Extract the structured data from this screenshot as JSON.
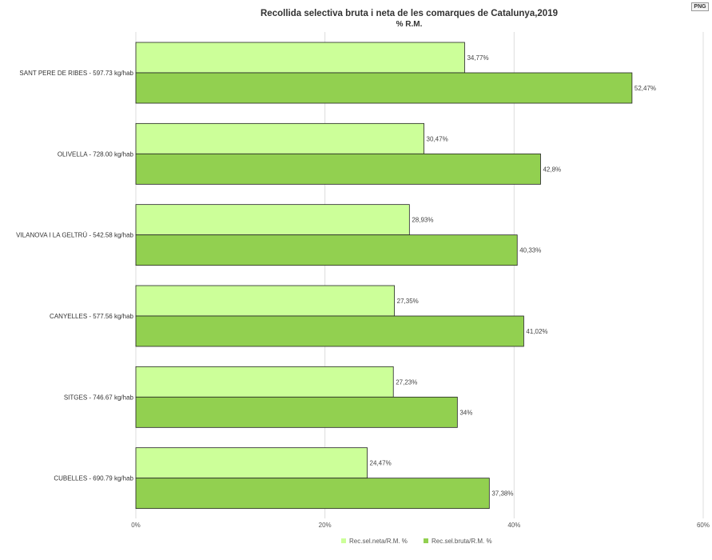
{
  "export_button": "PNG",
  "colors": {
    "neta": "#ccff99",
    "bruta": "#92d050",
    "stroke": "#222222",
    "grid": "#dddddd"
  },
  "chart_data": {
    "type": "bar",
    "orientation": "horizontal",
    "title": "Recollida selectiva bruta i neta de les comarques de Catalunya,2019",
    "subtitle": "% R.M.",
    "categories": [
      "SANT PERE DE RIBES - 597.73 kg/hab",
      "OLIVELLA - 728.00 kg/hab",
      "VILANOVA I LA GELTRÚ - 542.58 kg/hab",
      "CANYELLES - 577.56 kg/hab",
      "SITGES - 746.67 kg/hab",
      "CUBELLES - 690.79 kg/hab"
    ],
    "series": [
      {
        "name": "Rec.sel.neta/R.M. %",
        "values": [
          34.77,
          30.47,
          28.93,
          27.35,
          27.23,
          24.47
        ],
        "labels": [
          "34,77%",
          "30,47%",
          "28,93%",
          "27,35%",
          "27,23%",
          "24,47%"
        ]
      },
      {
        "name": "Rec.sel.bruta/R.M. %",
        "values": [
          52.47,
          42.8,
          40.33,
          41.02,
          34,
          37.38
        ],
        "labels": [
          "52,47%",
          "42,8%",
          "40,33%",
          "41,02%",
          "34%",
          "37,38%"
        ]
      }
    ],
    "xlim": [
      0,
      60
    ],
    "ticks": [
      0,
      20,
      40,
      60
    ],
    "tick_labels": [
      "0%",
      "20%",
      "40%",
      "60%"
    ],
    "grid": true,
    "legend_position": "bottom-center"
  }
}
